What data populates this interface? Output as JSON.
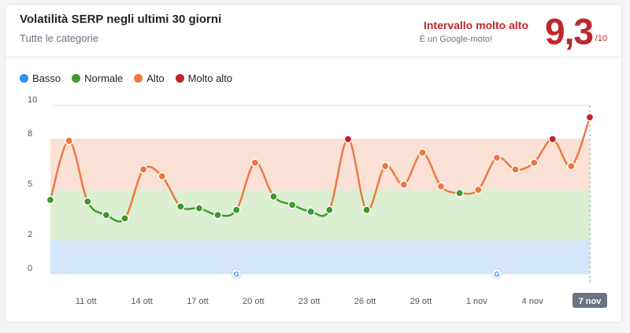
{
  "header": {
    "title": "Volatilità SERP negli ultimi 30 giorni",
    "subtitle": "Tutte le categorie",
    "range_label": "Intervallo molto alto",
    "range_note": "È un Google-moto!",
    "score": "9,3",
    "score_max": "/10"
  },
  "legend": [
    {
      "label": "Basso",
      "color": "#2e8ff0",
      "icon": "blue-dot-icon"
    },
    {
      "label": "Normale",
      "color": "#3e9a2c",
      "icon": "green-dot-icon"
    },
    {
      "label": "Alto",
      "color": "#ec7740",
      "icon": "orange-dot-icon"
    },
    {
      "label": "Molto alto",
      "color": "#c0262d",
      "icon": "red-dot-icon"
    }
  ],
  "chart_data": {
    "type": "line",
    "y_ticks": [
      "10",
      "8",
      "5",
      "2",
      "0"
    ],
    "y_tick_values": [
      10,
      8,
      5,
      2,
      0
    ],
    "x_tick_labels": [
      "11 ott",
      "14 ott",
      "17 ott",
      "20 ott",
      "23 ott",
      "26 ott",
      "29 ott",
      "1 nov",
      "4 nov",
      "7 nov"
    ],
    "x_tick_indexes": [
      2,
      5,
      8,
      11,
      14,
      17,
      20,
      23,
      26,
      29
    ],
    "highlighted_x_label": "7 nov",
    "ylim": [
      0,
      10
    ],
    "bands": [
      {
        "name": "Basso",
        "from": 0,
        "to": 2,
        "color": "#d3e6fb"
      },
      {
        "name": "Normale",
        "from": 2,
        "to": 5,
        "color": "#dcefd2"
      },
      {
        "name": "Alto",
        "from": 5,
        "to": 8,
        "color": "#fbe0d5"
      },
      {
        "name": "Molto alto",
        "from": 8,
        "to": 10,
        "color": "#ffffff"
      }
    ],
    "values": [
      4.4,
      7.9,
      4.3,
      3.5,
      3.3,
      6.2,
      5.8,
      4.0,
      3.9,
      3.5,
      3.8,
      6.6,
      4.6,
      4.1,
      3.7,
      3.8,
      8.0,
      3.8,
      6.4,
      5.3,
      7.2,
      5.2,
      4.8,
      5.0,
      6.9,
      6.2,
      6.6,
      8.0,
      6.4,
      9.3
    ],
    "google_update_markers": [
      10,
      24
    ],
    "grid": true
  }
}
